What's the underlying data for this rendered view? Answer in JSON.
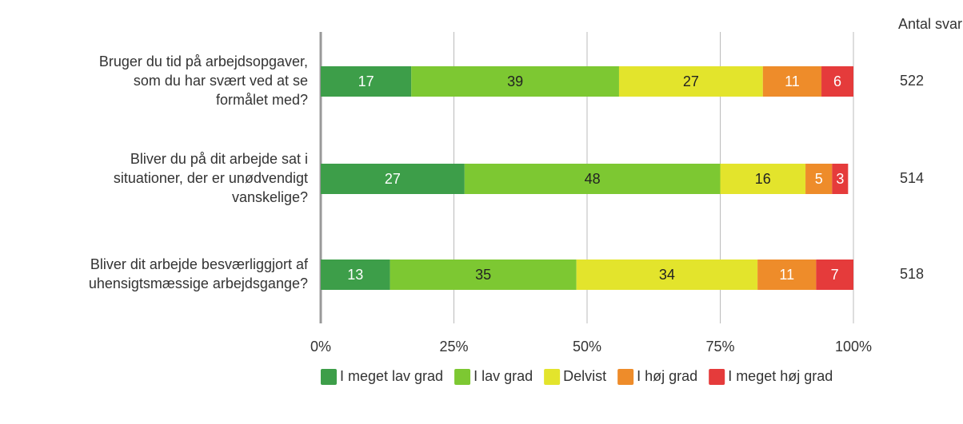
{
  "chart_data": {
    "type": "stacked_barh",
    "categories": [
      [
        "Bruger du tid på arbejdsopgaver,",
        "som du har svært ved at se",
        "formålet med?"
      ],
      [
        "Bliver du på dit arbejde sat i",
        "situationer, der er unødvendigt",
        "vanskelige?"
      ],
      [
        "Bliver dit arbejde besværliggjort af",
        "uhensigtsmæssige arbejdsgange?"
      ]
    ],
    "series": [
      {
        "name": "I meget lav grad",
        "color": "#3d9e49",
        "text_color": "#ffffff",
        "values": [
          17,
          27,
          13
        ]
      },
      {
        "name": "I lav grad",
        "color": "#7dc832",
        "text_color": "#222222",
        "values": [
          39,
          48,
          35
        ]
      },
      {
        "name": "Delvist",
        "color": "#e3e42c",
        "text_color": "#222222",
        "values": [
          27,
          16,
          34
        ]
      },
      {
        "name": "I høj grad",
        "color": "#ee8c2a",
        "text_color": "#ffffff",
        "values": [
          11,
          5,
          11
        ]
      },
      {
        "name": "I meget høj grad",
        "color": "#e53b3b",
        "text_color": "#ffffff",
        "values": [
          6,
          3,
          7
        ]
      }
    ],
    "xlim": [
      0,
      100
    ],
    "xticks": [
      {
        "value": 0,
        "label": "0%"
      },
      {
        "value": 25,
        "label": "25%"
      },
      {
        "value": 50,
        "label": "50%"
      },
      {
        "value": 75,
        "label": "75%"
      },
      {
        "value": 100,
        "label": "100%"
      }
    ],
    "grid": true,
    "counts_label": "Antal svar",
    "counts": [
      522,
      514,
      518
    ]
  }
}
